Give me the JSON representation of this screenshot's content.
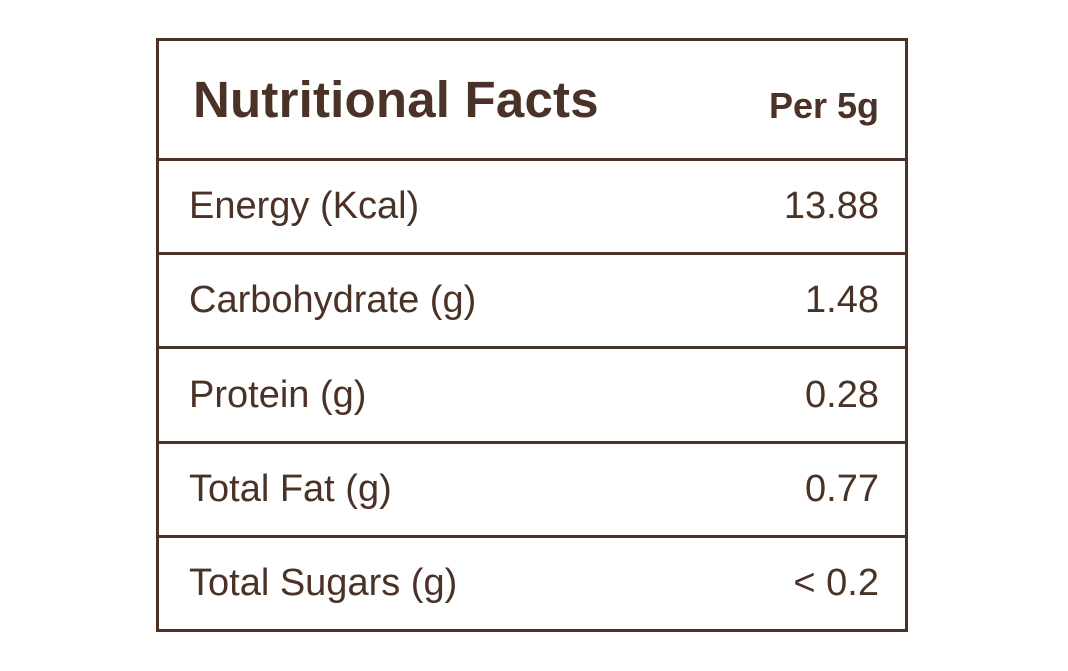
{
  "header": {
    "title": "Nutritional Facts",
    "serving": "Per 5g"
  },
  "rows": [
    {
      "label": "Energy (Kcal)",
      "value": "13.88"
    },
    {
      "label": "Carbohydrate (g)",
      "value": "1.48"
    },
    {
      "label": "Protein (g)",
      "value": "0.28"
    },
    {
      "label": "Total Fat (g)",
      "value": "0.77"
    },
    {
      "label": "Total Sugars (g)",
      "value": "< 0.2"
    }
  ],
  "colors": {
    "text": "#4a3226",
    "border": "#4a3226",
    "background": "#ffffff"
  }
}
